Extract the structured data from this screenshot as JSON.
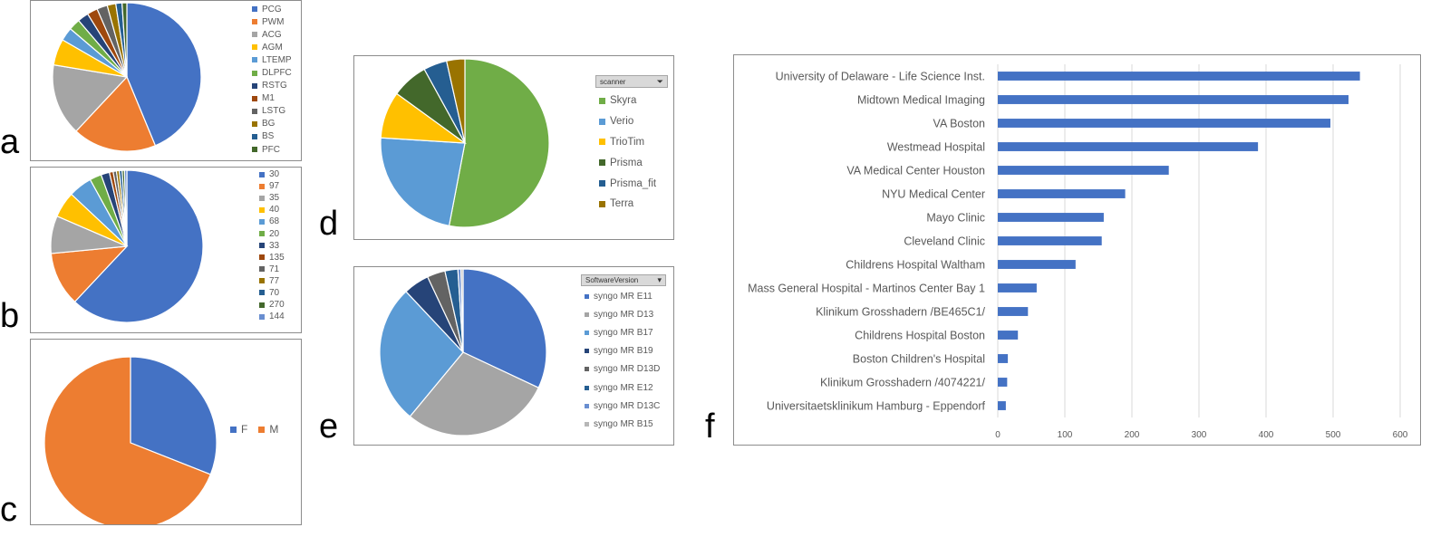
{
  "panels": [
    {
      "id": "a",
      "letter": "a"
    },
    {
      "id": "b",
      "letter": "b"
    },
    {
      "id": "c",
      "letter": "c"
    },
    {
      "id": "d",
      "letter": "d"
    },
    {
      "id": "e",
      "letter": "e"
    },
    {
      "id": "f",
      "letter": "f"
    }
  ],
  "filters": {
    "scanner": {
      "label": "scanner",
      "icon": "filter-icon"
    },
    "software": {
      "label": "SoftwareVersion",
      "icon": "dropdown-icon"
    }
  },
  "chart_data": [
    {
      "id": "a",
      "type": "pie",
      "title": "",
      "legend_position": "right",
      "labels": [
        "PCG",
        "PWM",
        "ACG",
        "AGM",
        "LTEMP",
        "DLPFC",
        "RSTG",
        "M1",
        "LSTG",
        "BG",
        "BS",
        "PFC"
      ],
      "values": [
        42.0,
        17.5,
        15.0,
        5.5,
        2.8,
        2.4,
        2.3,
        2.2,
        2.2,
        1.8,
        1.3,
        1.0
      ],
      "colors": [
        "#4472C4",
        "#ED7D31",
        "#A5A5A5",
        "#FFC000",
        "#5B9BD5",
        "#70AD47",
        "#264478",
        "#9E480E",
        "#636363",
        "#997300",
        "#255E91",
        "#43682B"
      ]
    },
    {
      "id": "b",
      "type": "pie",
      "title": "",
      "legend_position": "right",
      "labels": [
        "30",
        "97",
        "35",
        "40",
        "68",
        "20",
        "33",
        "135",
        "71",
        "77",
        "70",
        "270",
        "144"
      ],
      "values": [
        62.0,
        11.5,
        8.0,
        5.5,
        5.0,
        2.5,
        1.8,
        0.8,
        0.7,
        0.6,
        0.6,
        0.5,
        0.5
      ],
      "colors": [
        "#4472C4",
        "#ED7D31",
        "#A5A5A5",
        "#FFC000",
        "#5B9BD5",
        "#70AD47",
        "#264478",
        "#9E480E",
        "#636363",
        "#997300",
        "#255E91",
        "#43682B",
        "#698ED0"
      ]
    },
    {
      "id": "c",
      "type": "pie",
      "title": "",
      "legend_position": "right",
      "labels": [
        "F",
        "M"
      ],
      "values": [
        31,
        69
      ],
      "colors": [
        "#4472C4",
        "#ED7D31"
      ]
    },
    {
      "id": "d",
      "type": "pie",
      "title": "",
      "legend_position": "right",
      "labels": [
        "Skyra",
        "Verio",
        "TrioTim",
        "Prisma",
        "Prisma_fit",
        "Terra"
      ],
      "values": [
        53.0,
        23.0,
        9.0,
        7.0,
        4.5,
        3.5
      ],
      "colors": [
        "#70AD47",
        "#5B9BD5",
        "#FFC000",
        "#43682B",
        "#255E91",
        "#997300"
      ]
    },
    {
      "id": "e",
      "type": "pie",
      "title": "",
      "legend_position": "right",
      "labels": [
        "syngo MR E11",
        "syngo MR D13",
        "syngo MR B17",
        "syngo MR B19",
        "syngo MR D13D",
        "syngo MR E12",
        "syngo MR D13C",
        "syngo MR B15"
      ],
      "values": [
        32.0,
        29.0,
        27.0,
        5.0,
        3.5,
        2.5,
        0.6,
        0.4
      ],
      "colors": [
        "#4472C4",
        "#A5A5A5",
        "#5B9BD5",
        "#264478",
        "#636363",
        "#255E91",
        "#698ED0",
        "#B7B7B7"
      ]
    },
    {
      "id": "f",
      "type": "bar",
      "orientation": "horizontal",
      "title": "",
      "xlabel": "",
      "ylabel": "",
      "xlim": [
        0,
        600
      ],
      "xticks": [
        0,
        100,
        200,
        300,
        400,
        500,
        600
      ],
      "grid": true,
      "color": "#4472C4",
      "categories": [
        "University of Delaware - Life Science Inst.",
        "Midtown Medical Imaging",
        "VA Boston",
        "Westmead Hospital",
        "VA Medical Center Houston",
        "NYU Medical Center",
        "Mayo Clinic",
        "Cleveland Clinic",
        "Childrens Hospital Waltham",
        "Mass General Hospital - Martinos Center Bay 1",
        "Klinikum Grosshadern /BE465C1/",
        "Childrens Hospital Boston",
        "Boston Children's Hospital",
        "Klinikum Grosshadern /4074221/",
        "Universitaetsklinikum Hamburg - Eppendorf"
      ],
      "values": [
        540,
        523,
        496,
        388,
        255,
        190,
        158,
        155,
        116,
        58,
        45,
        30,
        15,
        14,
        12
      ]
    }
  ]
}
